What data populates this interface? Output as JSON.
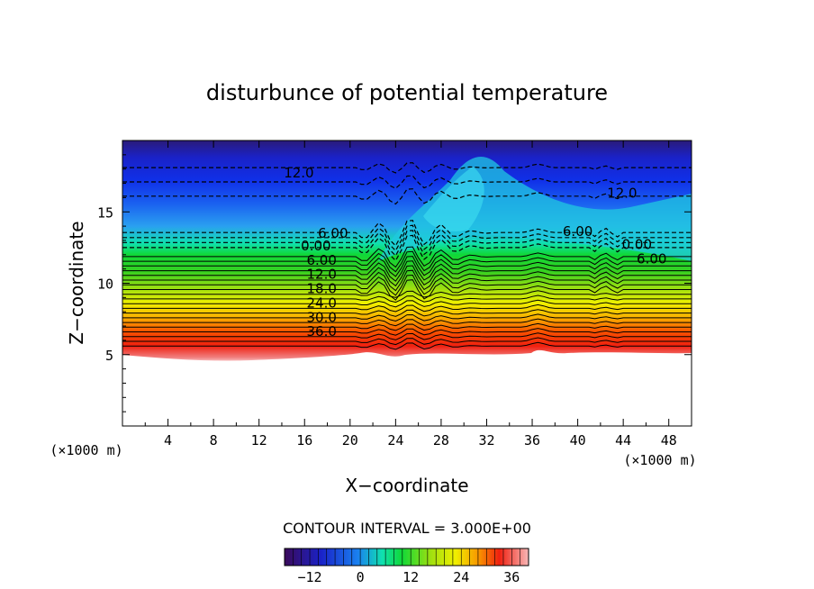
{
  "chart_data": {
    "type": "heatmap",
    "title": "disturbunce of potential temperature",
    "xlabel": "X−coordinate",
    "ylabel": "Z−coordinate",
    "x_unit": "(×1000 m)",
    "z_unit": "(×1000 m)",
    "xlim": [
      0,
      50
    ],
    "ylim": [
      0,
      20
    ],
    "x_ticks": [
      "4",
      "8",
      "12",
      "16",
      "20",
      "24",
      "28",
      "32",
      "36",
      "40",
      "44",
      "48"
    ],
    "y_ticks": [
      "5",
      "10",
      "15"
    ],
    "contour_interval_text": "CONTOUR INTERVAL = 3.000E+00",
    "colorbar": {
      "min": -18,
      "max": 40,
      "tick_labels": [
        "−12",
        "0",
        "12",
        "24",
        "36"
      ],
      "tick_values": [
        -12,
        0,
        12,
        24,
        36
      ]
    },
    "contour_labels": [
      {
        "text": "12.0",
        "x": 15.5,
        "z": 17.4
      },
      {
        "text": "12.0",
        "x": 43.9,
        "z": 16.0
      },
      {
        "text": "6.00",
        "x": 18.5,
        "z": 13.2
      },
      {
        "text": "6.00",
        "x": 40.0,
        "z": 13.3
      },
      {
        "text": "0.00",
        "x": 17.0,
        "z": 12.3
      },
      {
        "text": "0.00",
        "x": 45.2,
        "z": 12.4
      },
      {
        "text": "6.00",
        "x": 17.5,
        "z": 11.3
      },
      {
        "text": "6.00",
        "x": 46.5,
        "z": 11.4
      },
      {
        "text": "12.0",
        "x": 17.5,
        "z": 10.3
      },
      {
        "text": "18.0",
        "x": 17.5,
        "z": 9.3
      },
      {
        "text": "24.0",
        "x": 17.5,
        "z": 8.3
      },
      {
        "text": "30.0",
        "x": 17.5,
        "z": 7.3
      },
      {
        "text": "36.0",
        "x": 17.5,
        "z": 6.3
      }
    ],
    "field_description": "Stratified field: values increase from about −15 near z=19 to about 40 near z=5; terrain below z≈5 is blank; turbulent disturbance around x=21–32 at z=10–19."
  }
}
